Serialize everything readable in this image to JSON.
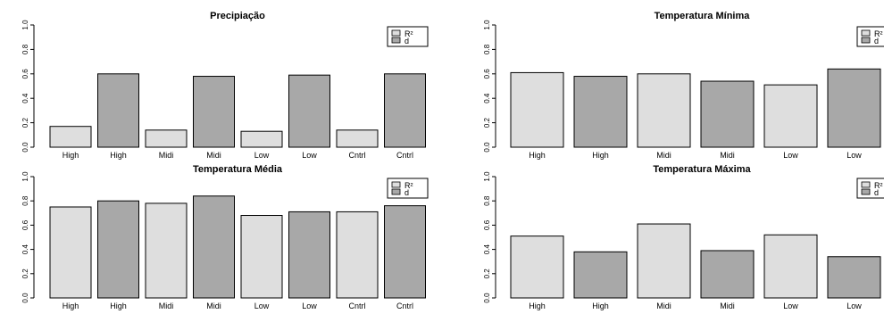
{
  "colors": {
    "r2": "#dedede",
    "d": "#a8a8a8",
    "stroke": "#000000"
  },
  "legend": {
    "r2_label": "R²",
    "d_label": "d"
  },
  "chart_data": [
    {
      "type": "bar",
      "title": "Precipiação",
      "categories": [
        "High",
        "High",
        "Midi",
        "Midi",
        "Low",
        "Low",
        "Cntrl",
        "Cntrl"
      ],
      "values": [
        0.17,
        0.6,
        0.14,
        0.58,
        0.13,
        0.59,
        0.14,
        0.6
      ],
      "series_of_bar": [
        "R²",
        "d",
        "R²",
        "d",
        "R²",
        "d",
        "R²",
        "d"
      ],
      "ylim": [
        0,
        1
      ],
      "yticks": [
        "0.0",
        "0.2",
        "0.4",
        "0.6",
        "0.8",
        "1.0"
      ],
      "legend_position": "top-right"
    },
    {
      "type": "bar",
      "title": "Temperatura Mínima",
      "categories": [
        "High",
        "High",
        "Midi",
        "Midi",
        "Low",
        "Low"
      ],
      "values": [
        0.61,
        0.58,
        0.6,
        0.54,
        0.51,
        0.64
      ],
      "series_of_bar": [
        "R²",
        "d",
        "R²",
        "d",
        "R²",
        "d"
      ],
      "ylim": [
        0,
        1
      ],
      "yticks": [
        "0.0",
        "0.2",
        "0.4",
        "0.6",
        "0.8",
        "1.0"
      ],
      "legend_position": "top-right"
    },
    {
      "type": "bar",
      "title": "Temperatura Média",
      "categories": [
        "High",
        "High",
        "Midi",
        "Midi",
        "Low",
        "Low",
        "Cntrl",
        "Cntrl"
      ],
      "values": [
        0.75,
        0.8,
        0.78,
        0.84,
        0.68,
        0.71,
        0.71,
        0.76
      ],
      "series_of_bar": [
        "R²",
        "d",
        "R²",
        "d",
        "R²",
        "d",
        "R²",
        "d"
      ],
      "ylim": [
        0,
        1
      ],
      "yticks": [
        "0.0",
        "0.2",
        "0.4",
        "0.6",
        "0.8",
        "1.0"
      ],
      "legend_position": "top-right"
    },
    {
      "type": "bar",
      "title": "Temperatura Máxima",
      "categories": [
        "High",
        "High",
        "Midi",
        "Midi",
        "Low",
        "Low"
      ],
      "values": [
        0.51,
        0.38,
        0.61,
        0.39,
        0.52,
        0.34
      ],
      "series_of_bar": [
        "R²",
        "d",
        "R²",
        "d",
        "R²",
        "d"
      ],
      "ylim": [
        0,
        1
      ],
      "yticks": [
        "0.0",
        "0.2",
        "0.4",
        "0.6",
        "0.8",
        "1.0"
      ],
      "legend_position": "top-right"
    }
  ]
}
